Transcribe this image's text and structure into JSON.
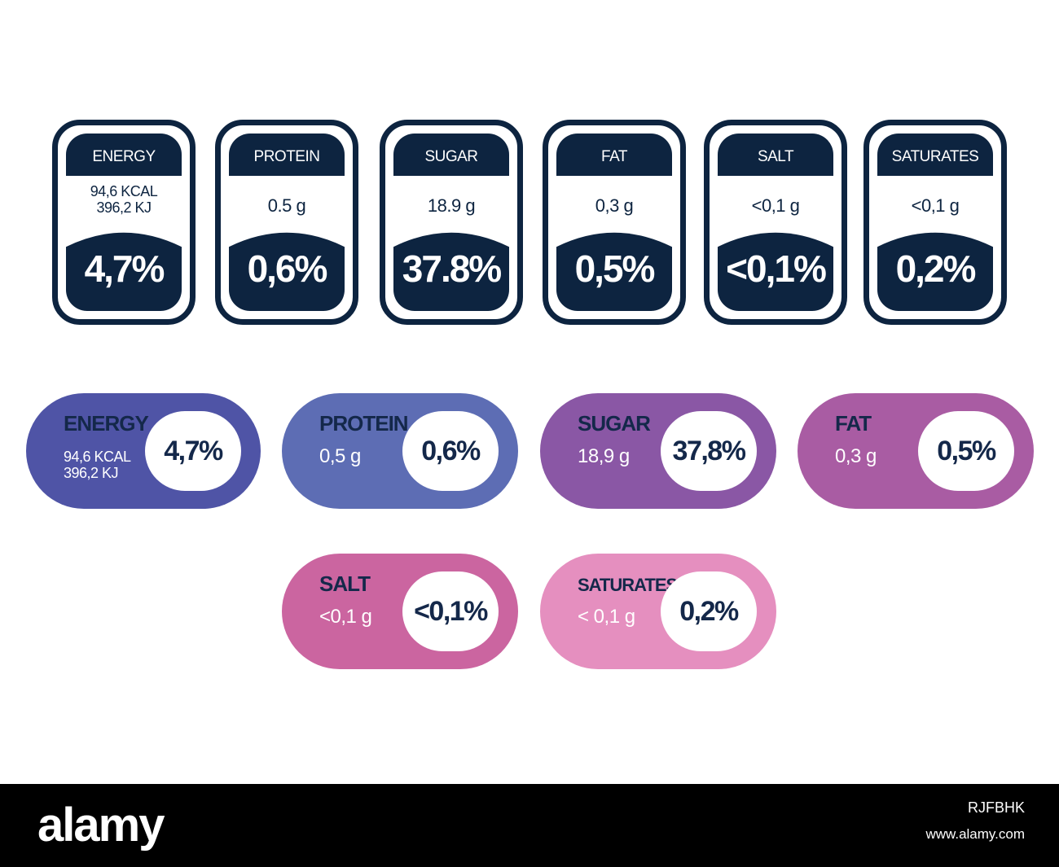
{
  "top_labels": [
    {
      "name": "ENERGY",
      "amount_lines": [
        "94,6 KCAL",
        "396,2 KJ"
      ],
      "percent": "4,7%"
    },
    {
      "name": "PROTEIN",
      "amount_lines": [
        "0.5 g"
      ],
      "percent": "0,6%"
    },
    {
      "name": "SUGAR",
      "amount_lines": [
        "18.9 g"
      ],
      "percent": "37.8%"
    },
    {
      "name": "FAT",
      "amount_lines": [
        "0,3 g"
      ],
      "percent": "0,5%"
    },
    {
      "name": "SALT",
      "amount_lines": [
        "<0,1 g"
      ],
      "percent": "<0,1%"
    },
    {
      "name": "SATURATES",
      "amount_lines": [
        "<0,1 g"
      ],
      "percent": "0,2%"
    }
  ],
  "pill_labels": [
    {
      "name": "ENERGY",
      "amount_lines": [
        "94,6 KCAL",
        "396,2 KJ"
      ],
      "percent": "4,7%",
      "color": "#4f54a6"
    },
    {
      "name": "PROTEIN",
      "amount_lines": [
        "0,5 g"
      ],
      "percent": "0,6%",
      "color": "#5d6db4"
    },
    {
      "name": "SUGAR",
      "amount_lines": [
        "18,9 g"
      ],
      "percent": "37,8%",
      "color": "#8a57a5"
    },
    {
      "name": "FAT",
      "amount_lines": [
        "0,3 g"
      ],
      "percent": "0,5%",
      "color": "#a95ca3"
    },
    {
      "name": "SALT",
      "amount_lines": [
        "<0,1 g"
      ],
      "percent": "<0,1%",
      "color": "#cb65a0"
    },
    {
      "name": "SATURATES",
      "amount_lines": [
        "< 0,1 g"
      ],
      "percent": "0,2%",
      "color": "#e58fbf"
    }
  ],
  "colors": {
    "dark_navy": "#0d2440",
    "text_navy": "#14284a"
  },
  "watermark": {
    "logo": "alamy",
    "image_id": "RJFBHK",
    "url": "www.alamy.com"
  }
}
